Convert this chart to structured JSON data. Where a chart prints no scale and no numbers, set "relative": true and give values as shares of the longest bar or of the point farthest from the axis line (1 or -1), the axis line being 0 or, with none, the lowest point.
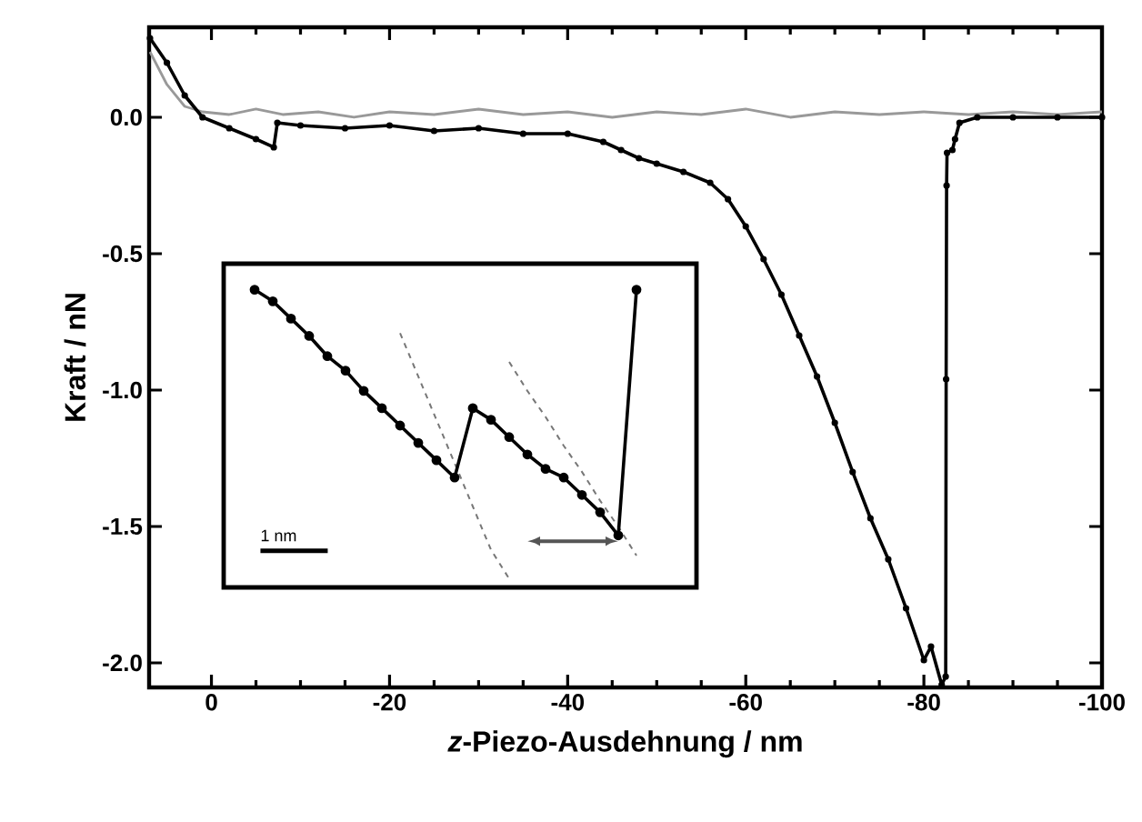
{
  "chart_data": [
    {
      "type": "line",
      "xlabel": "*z*-Piezo-Ausdehnung / nm",
      "ylabel": "Kraft / nN",
      "xlim": [
        7,
        -100
      ],
      "xticks": [
        0,
        -20,
        -40,
        -60,
        -80,
        -100
      ],
      "ylim": [
        -2.09,
        0.33
      ],
      "yticks": [
        {
          "value": 0,
          "label": "0.0"
        },
        {
          "value": -0.5,
          "label": "-0.5"
        },
        {
          "value": -1,
          "label": "-1.0"
        },
        {
          "value": -1.5,
          "label": "-1.5"
        },
        {
          "value": -2,
          "label": "-2.0"
        }
      ],
      "series": [
        {
          "color": "#999999",
          "marker": "none",
          "x": [
            6.9,
            5,
            3,
            1,
            -2,
            -5,
            -8,
            -12,
            -16,
            -20,
            -25,
            -30,
            -35,
            -40,
            -45,
            -50,
            -55,
            -60,
            -65,
            -70,
            -75,
            -80,
            -85,
            -90,
            -95,
            -100
          ],
          "values": [
            0.24,
            0.12,
            0.04,
            0.02,
            0.01,
            0.03,
            0.01,
            0.02,
            0.0,
            0.02,
            0.01,
            0.03,
            0.01,
            0.02,
            0.0,
            0.02,
            0.01,
            0.03,
            0.0,
            0.02,
            0.01,
            0.02,
            0.01,
            0.02,
            0.01,
            0.02
          ]
        },
        {
          "color": "#000000",
          "marker": "circle",
          "x": [
            6.9,
            5,
            3,
            1,
            -2,
            -5,
            -7,
            -7.4,
            -10,
            -15,
            -20,
            -25,
            -30,
            -35,
            -40,
            -44,
            -46,
            -48,
            -50,
            -53,
            -56,
            -58,
            -60,
            -62,
            -64,
            -66,
            -68,
            -70,
            -72,
            -74,
            -76,
            -78,
            -80,
            -80.8,
            -82,
            -82.45,
            -82.5,
            -82.55,
            -82.6,
            -83.2,
            -83.5,
            -84,
            -86,
            -90,
            -95,
            -100
          ],
          "values": [
            0.29,
            0.2,
            0.08,
            0.0,
            -0.04,
            -0.08,
            -0.11,
            -0.02,
            -0.03,
            -0.04,
            -0.03,
            -0.05,
            -0.04,
            -0.06,
            -0.06,
            -0.09,
            -0.12,
            -0.15,
            -0.17,
            -0.2,
            -0.24,
            -0.3,
            -0.4,
            -0.52,
            -0.65,
            -0.8,
            -0.95,
            -1.12,
            -1.3,
            -1.47,
            -1.62,
            -1.8,
            -1.99,
            -1.94,
            -2.08,
            -2.05,
            -0.96,
            -0.25,
            -0.13,
            -0.12,
            -0.08,
            -0.02,
            0.0,
            0.0,
            0.0,
            0.0
          ]
        }
      ]
    },
    {
      "type": "line",
      "relative": true,
      "annotations": [
        "1 nm"
      ],
      "categories": [
        null,
        null,
        null,
        null,
        null,
        null,
        null,
        null,
        null,
        null,
        null,
        null,
        null,
        null,
        null,
        null,
        null,
        null,
        null,
        null,
        null,
        null
      ],
      "series": [
        {
          "color": "#777777",
          "line_style": "dashed",
          "marker": "none",
          "values": [
            null,
            null,
            null,
            null,
            null,
            null,
            null,
            null,
            0.85,
            0.7,
            0.55,
            0.4,
            0.25,
            0.1,
            0.0,
            null,
            null,
            null,
            null,
            null,
            null,
            null
          ]
        },
        {
          "color": "#777777",
          "line_style": "dashed",
          "marker": "none",
          "values": [
            null,
            null,
            null,
            null,
            null,
            null,
            null,
            null,
            null,
            null,
            null,
            null,
            null,
            null,
            0.75,
            0.65,
            0.56,
            0.46,
            0.37,
            0.27,
            0.18,
            0.08
          ]
        },
        {
          "color": "#000000",
          "marker": "circle",
          "values": [
            1.0,
            0.96,
            0.9,
            0.84,
            0.77,
            0.72,
            0.65,
            0.59,
            0.53,
            0.47,
            0.41,
            0.35,
            0.59,
            0.55,
            0.49,
            0.43,
            0.38,
            0.35,
            0.29,
            0.23,
            0.15,
            1.0
          ]
        }
      ]
    }
  ]
}
